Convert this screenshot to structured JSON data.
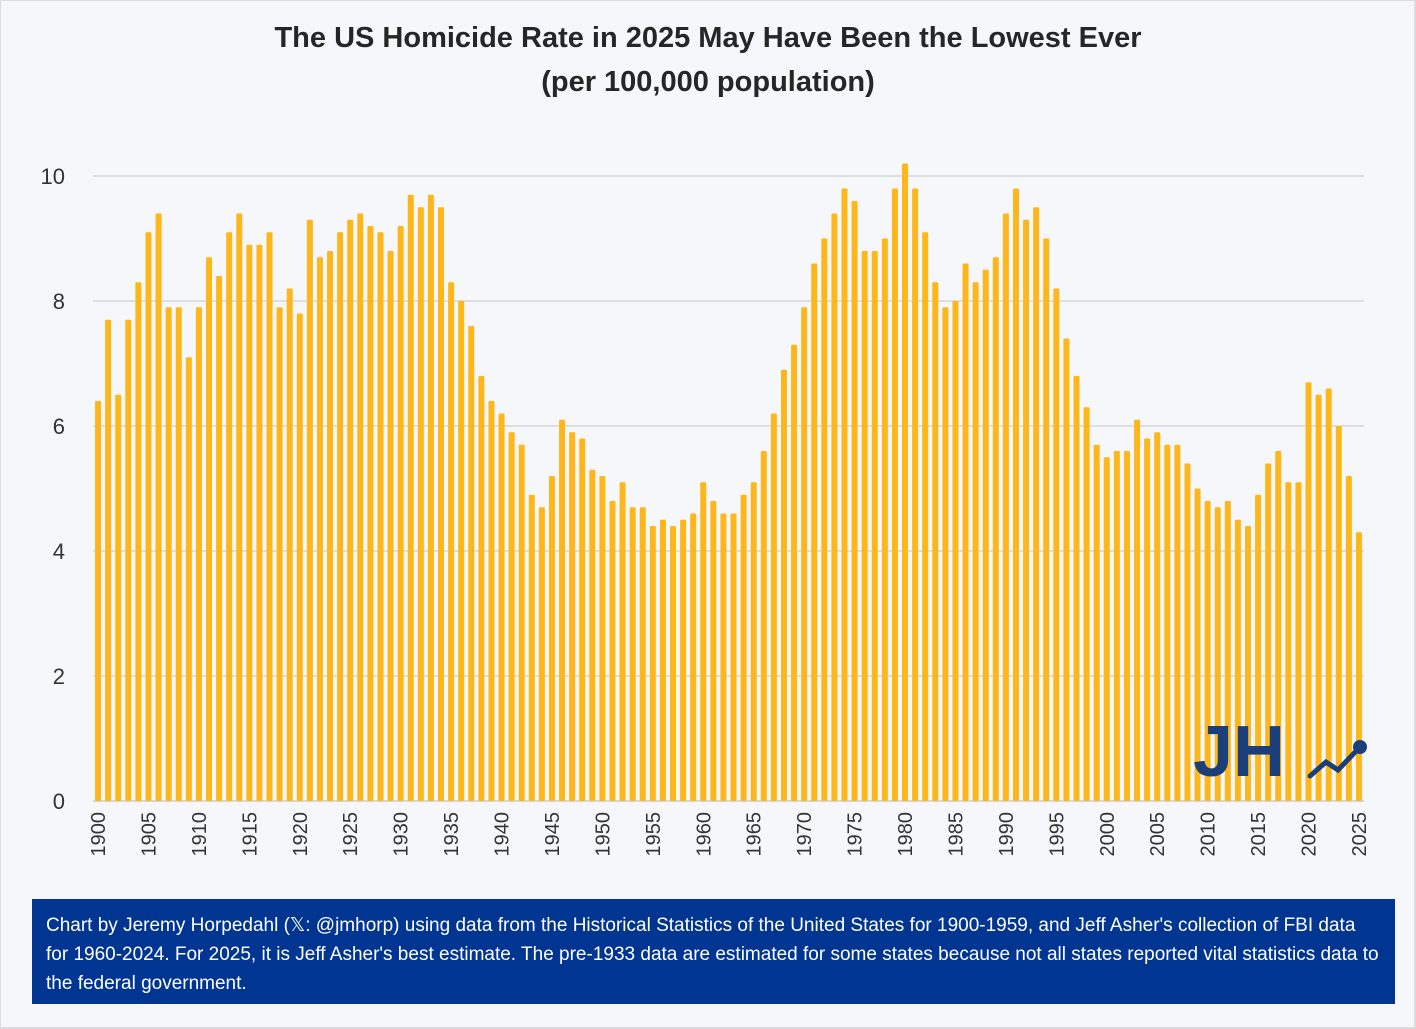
{
  "chart_data": {
    "type": "bar",
    "title": "The US Homicide Rate in 2025 May Have Been the Lowest Ever",
    "subtitle": "(per 100,000 population)",
    "xlabel": "",
    "ylabel": "",
    "ylim": [
      0,
      10.5
    ],
    "yticks": [
      0,
      2,
      4,
      6,
      8,
      10
    ],
    "xtick_labels": [
      "1900",
      "1905",
      "1910",
      "1915",
      "1920",
      "1925",
      "1930",
      "1935",
      "1940",
      "1945",
      "1950",
      "1955",
      "1960",
      "1965",
      "1970",
      "1975",
      "1980",
      "1985",
      "1990",
      "1995",
      "2000",
      "2005",
      "2010",
      "2015",
      "2020",
      "2025"
    ],
    "grid": true,
    "bar_color": "#FDB71A",
    "categories_start": 1900,
    "categories_end": 2025,
    "values": [
      6.4,
      7.7,
      6.5,
      7.7,
      8.3,
      9.1,
      9.4,
      7.9,
      7.9,
      7.1,
      7.9,
      8.7,
      8.4,
      9.1,
      9.4,
      8.9,
      8.9,
      9.1,
      7.9,
      8.2,
      7.8,
      9.3,
      8.7,
      8.8,
      9.1,
      9.3,
      9.4,
      9.2,
      9.1,
      8.8,
      9.2,
      9.7,
      9.5,
      9.7,
      9.5,
      8.3,
      8.0,
      7.6,
      6.8,
      6.4,
      6.2,
      5.9,
      5.7,
      4.9,
      4.7,
      5.2,
      6.1,
      5.9,
      5.8,
      5.3,
      5.2,
      4.8,
      5.1,
      4.7,
      4.7,
      4.4,
      4.5,
      4.4,
      4.5,
      4.6,
      5.1,
      4.8,
      4.6,
      4.6,
      4.9,
      5.1,
      5.6,
      6.2,
      6.9,
      7.3,
      7.9,
      8.6,
      9.0,
      9.4,
      9.8,
      9.6,
      8.8,
      8.8,
      9.0,
      9.8,
      10.2,
      9.8,
      9.1,
      8.3,
      7.9,
      8.0,
      8.6,
      8.3,
      8.5,
      8.7,
      9.4,
      9.8,
      9.3,
      9.5,
      9.0,
      8.2,
      7.4,
      6.8,
      6.3,
      5.7,
      5.5,
      5.6,
      5.6,
      6.1,
      5.8,
      5.9,
      5.7,
      5.7,
      5.4,
      5.0,
      4.8,
      4.7,
      4.8,
      4.5,
      4.4,
      4.9,
      5.4,
      5.6,
      5.1,
      5.1,
      6.7,
      6.5,
      6.6,
      6.0,
      5.2,
      4.3
    ]
  },
  "logo": {
    "text": "JH",
    "color": "#1A3F7A"
  },
  "footer": {
    "text": "Chart by Jeremy Horpedahl (𝕏: @jmhorp) using data from the Historical Statistics of the United States for 1900-1959,  and Jeff Asher's collection of FBI data for 1960-2024.  For 2025, it is Jeff Asher's best estimate. The pre-1933 data are estimated for some states because not all states reported vital statistics data to the federal government.",
    "background": "#003592"
  }
}
